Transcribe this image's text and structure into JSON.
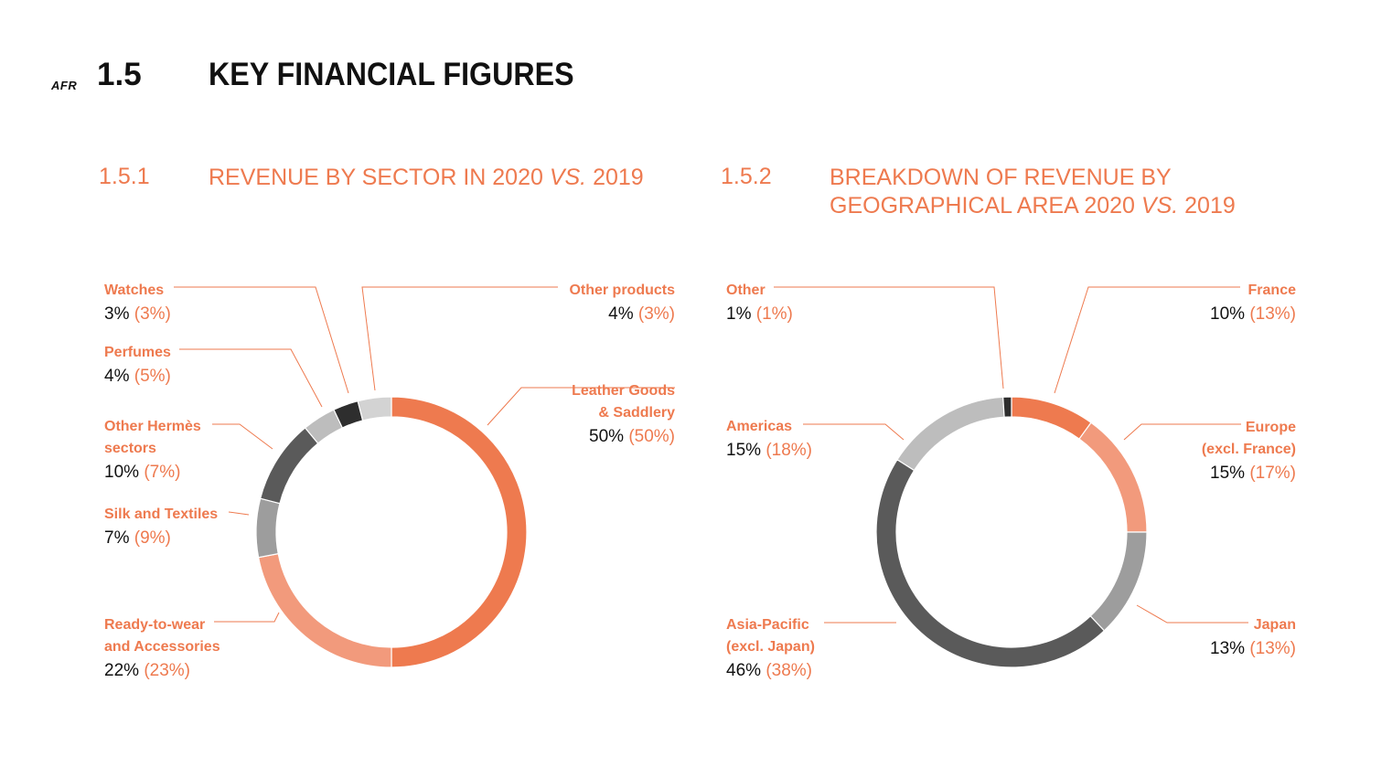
{
  "header": {
    "tag": "AFR",
    "number": "1.5",
    "title": "KEY FINANCIAL FIGURES"
  },
  "sections": [
    {
      "number": "1.5.1",
      "title_main": "REVENUE BY SECTOR IN 2020 ",
      "title_vs": "VS.",
      "title_end": " 2019"
    },
    {
      "number": "1.5.2",
      "title_line1": "BREAKDOWN OF REVENUE BY",
      "title_main": "GEOGRAPHICAL AREA 2020 ",
      "title_vs": "VS.",
      "title_end": " 2019"
    }
  ],
  "colors": {
    "orange": "#ee7a4f",
    "light_orange": "#f29a7c",
    "mid_gray": "#9d9d9d",
    "dark_gray": "#5a5a5a",
    "light_gray": "#bdbdbd",
    "black": "#2e2e2e",
    "pale_gray": "#d3d3d3"
  },
  "chart_data": [
    {
      "type": "pie",
      "series": [
        {
          "label": [
            "Leather Goods",
            "& Saddlery"
          ],
          "value": 50,
          "prior": 50,
          "color": "#ee7a4f"
        },
        {
          "label": [
            "Ready-to-wear",
            "and Accessories"
          ],
          "value": 22,
          "prior": 23,
          "color": "#f29a7c"
        },
        {
          "label": [
            "Silk and Textiles"
          ],
          "value": 7,
          "prior": 9,
          "color": "#9d9d9d"
        },
        {
          "label": [
            "Other Hermès",
            "sectors"
          ],
          "value": 10,
          "prior": 7,
          "color": "#5a5a5a"
        },
        {
          "label": [
            "Perfumes"
          ],
          "value": 4,
          "prior": 5,
          "color": "#bdbdbd"
        },
        {
          "label": [
            "Watches"
          ],
          "value": 3,
          "prior": 3,
          "color": "#2e2e2e"
        },
        {
          "label": [
            "Other products"
          ],
          "value": 4,
          "prior": 3,
          "color": "#d3d3d3"
        }
      ]
    },
    {
      "type": "pie",
      "series": [
        {
          "label": [
            "France"
          ],
          "value": 10,
          "prior": 13,
          "color": "#ee7a4f"
        },
        {
          "label": [
            "Europe",
            "(excl. France)"
          ],
          "value": 15,
          "prior": 17,
          "color": "#f29a7c"
        },
        {
          "label": [
            "Japan"
          ],
          "value": 13,
          "prior": 13,
          "color": "#9d9d9d"
        },
        {
          "label": [
            "Asia-Pacific",
            "(excl. Japan)"
          ],
          "value": 46,
          "prior": 38,
          "color": "#5a5a5a"
        },
        {
          "label": [
            "Americas"
          ],
          "value": 15,
          "prior": 18,
          "color": "#bdbdbd"
        },
        {
          "label": [
            "Other"
          ],
          "value": 1,
          "prior": 1,
          "color": "#2e2e2e"
        }
      ]
    }
  ]
}
